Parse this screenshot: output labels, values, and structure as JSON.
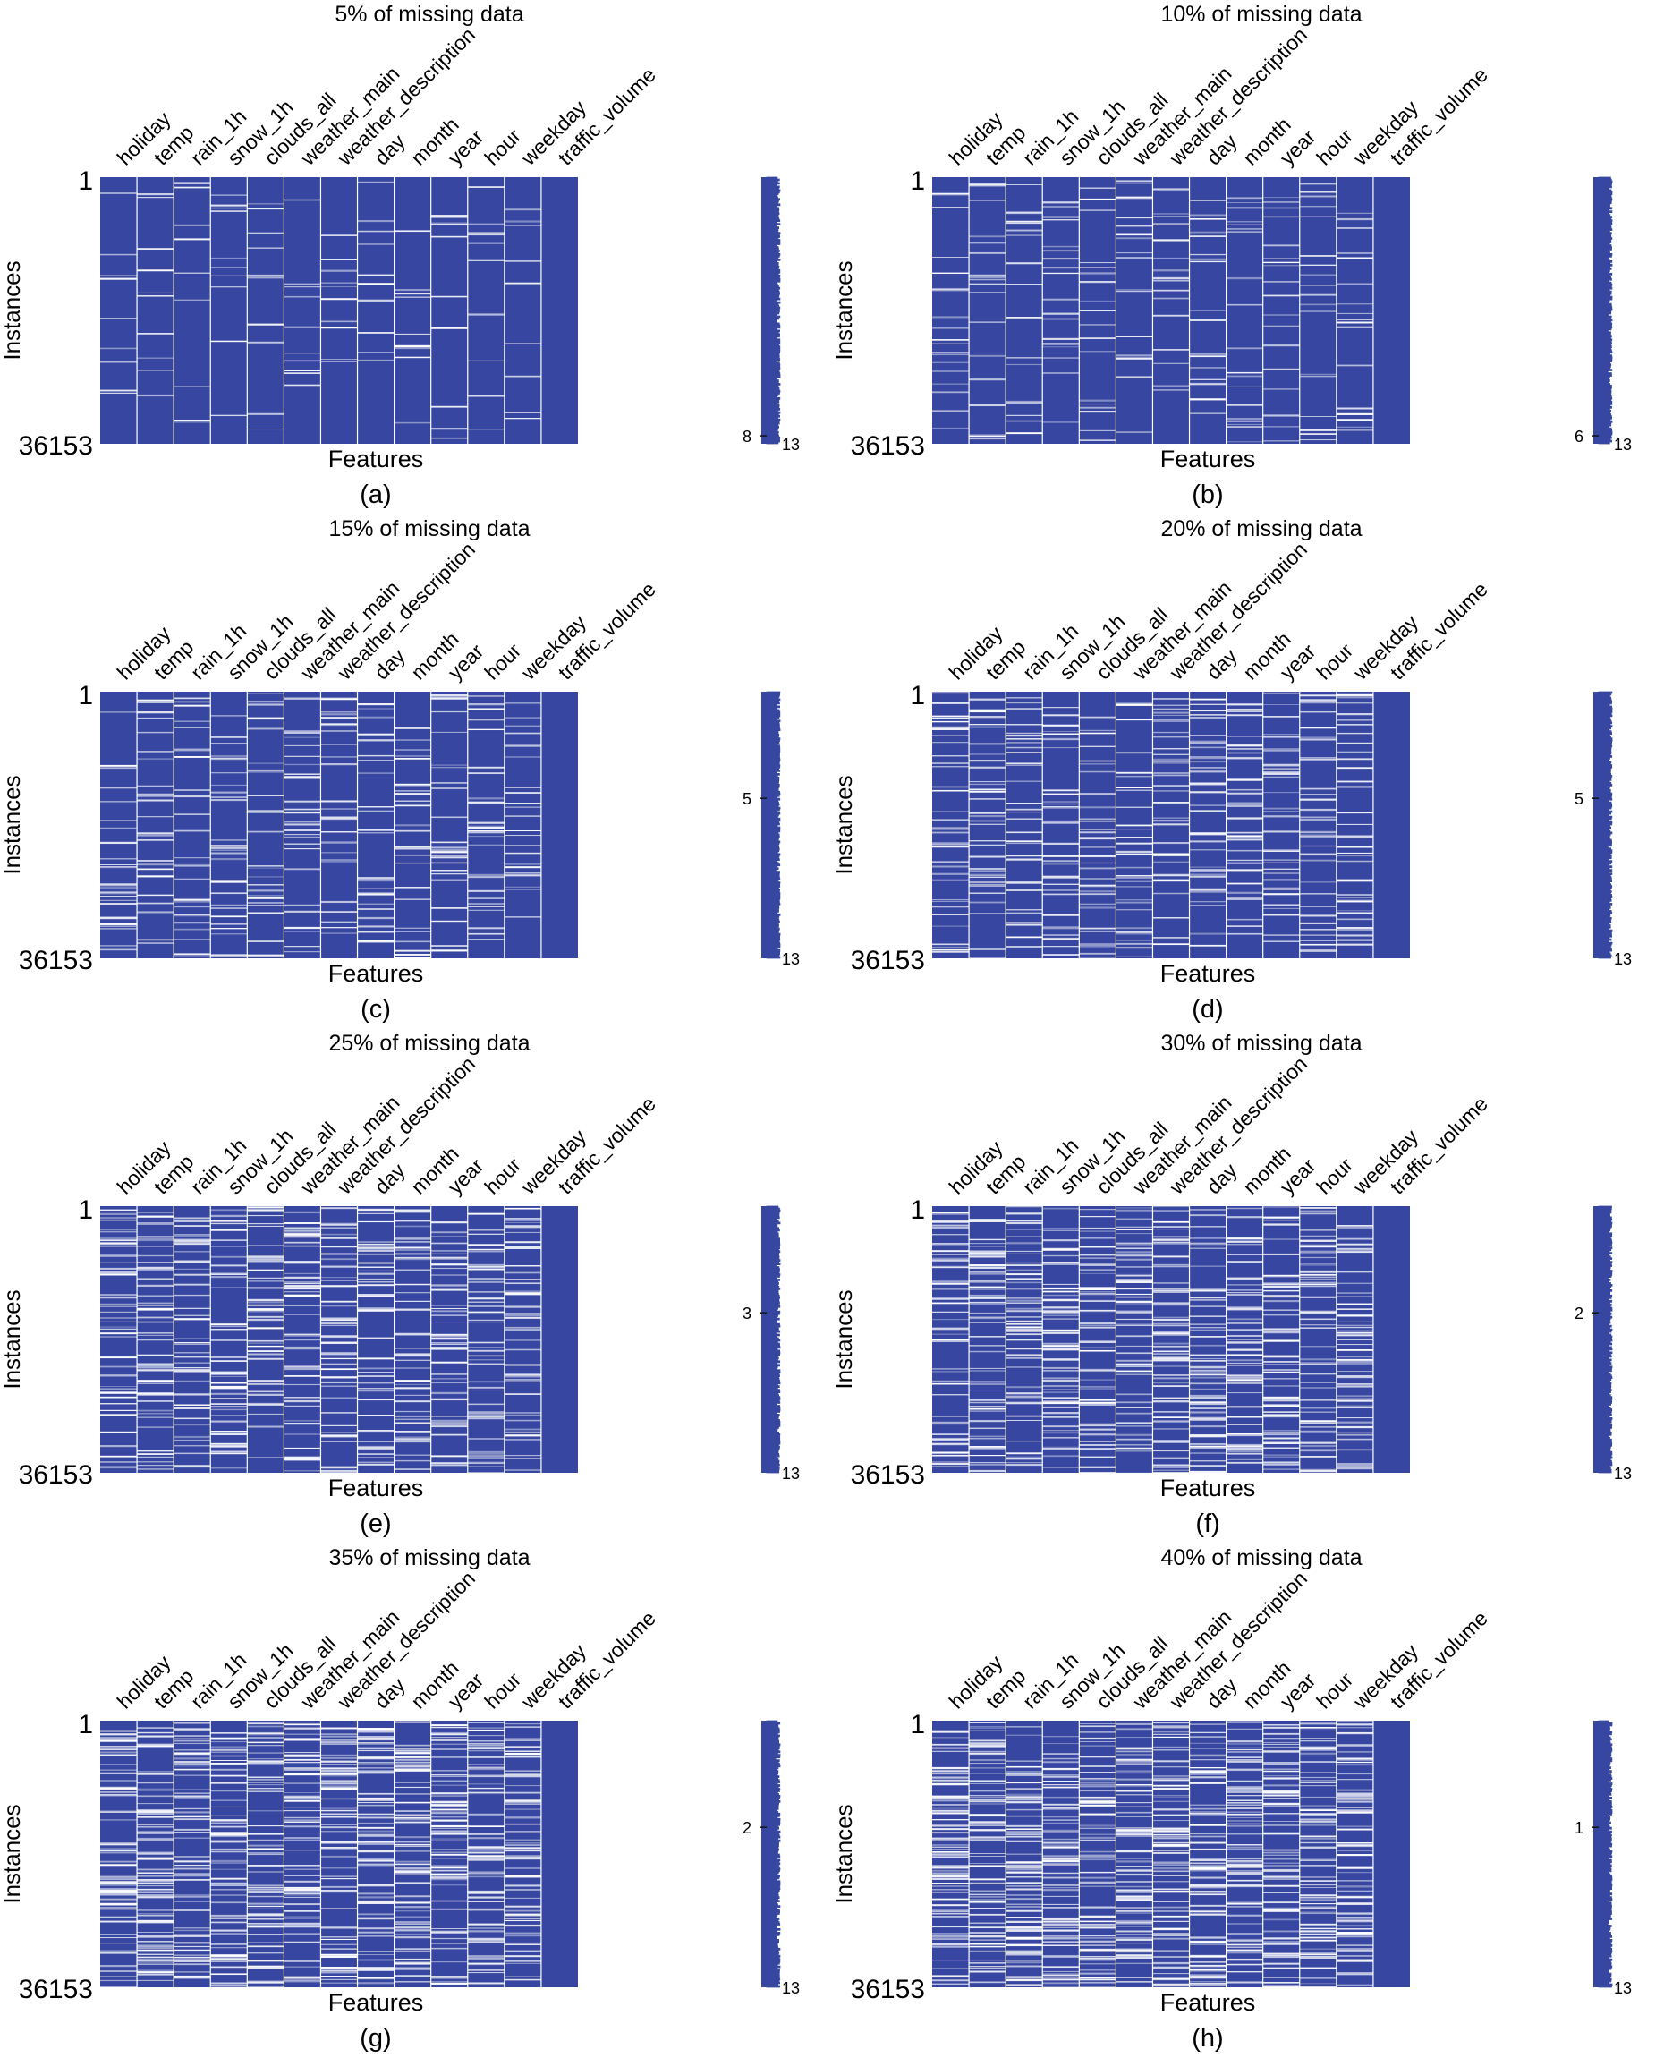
{
  "figure": {
    "colors": {
      "fill": "#3747a1",
      "gap": "#ffffff",
      "text": "#111111"
    },
    "xlabel": "Features",
    "ylabel": "Instances",
    "y_ticks": [
      "1",
      "36153"
    ],
    "columns": [
      "holiday",
      "temp",
      "rain_1h",
      "snow_1h",
      "clouds_all",
      "weather_main",
      "weather_description",
      "day",
      "month",
      "year",
      "hour",
      "weekday",
      "traffic_volume"
    ]
  },
  "chart_data": [
    {
      "type": "heatmap",
      "title": "5% of missing data",
      "panel": "(a)",
      "missing_rate": 0.05,
      "complete_columns": [
        "traffic_volume"
      ],
      "sparkline_min_label": "8",
      "sparkline_max_label": "13",
      "sparkline_min": 8,
      "sparkline_max": 13
    },
    {
      "type": "heatmap",
      "title": "10% of missing data",
      "panel": "(b)",
      "missing_rate": 0.1,
      "complete_columns": [
        "traffic_volume"
      ],
      "sparkline_min_label": "6",
      "sparkline_max_label": "13",
      "sparkline_min": 6,
      "sparkline_max": 13
    },
    {
      "type": "heatmap",
      "title": "15% of missing data",
      "panel": "(c)",
      "missing_rate": 0.15,
      "complete_columns": [
        "traffic_volume"
      ],
      "sparkline_min_label": "5",
      "sparkline_max_label": "13",
      "sparkline_min": 5,
      "sparkline_max": 13
    },
    {
      "type": "heatmap",
      "title": "20% of missing data",
      "panel": "(d)",
      "missing_rate": 0.2,
      "complete_columns": [
        "traffic_volume"
      ],
      "sparkline_min_label": "5",
      "sparkline_max_label": "13",
      "sparkline_min": 5,
      "sparkline_max": 13
    },
    {
      "type": "heatmap",
      "title": "25% of missing data",
      "panel": "(e)",
      "missing_rate": 0.25,
      "complete_columns": [
        "traffic_volume"
      ],
      "sparkline_min_label": "3",
      "sparkline_max_label": "13",
      "sparkline_min": 3,
      "sparkline_max": 13
    },
    {
      "type": "heatmap",
      "title": "30% of missing data",
      "panel": "(f)",
      "missing_rate": 0.3,
      "complete_columns": [
        "traffic_volume"
      ],
      "sparkline_min_label": "2",
      "sparkline_max_label": "13",
      "sparkline_min": 2,
      "sparkline_max": 13
    },
    {
      "type": "heatmap",
      "title": "35% of missing data",
      "panel": "(g)",
      "missing_rate": 0.35,
      "complete_columns": [
        "traffic_volume"
      ],
      "sparkline_min_label": "2",
      "sparkline_max_label": "13",
      "sparkline_min": 2,
      "sparkline_max": 13
    },
    {
      "type": "heatmap",
      "title": "40% of missing data",
      "panel": "(h)",
      "missing_rate": 0.4,
      "complete_columns": [
        "traffic_volume"
      ],
      "sparkline_min_label": "1",
      "sparkline_max_label": "13",
      "sparkline_min": 1,
      "sparkline_max": 13
    }
  ]
}
